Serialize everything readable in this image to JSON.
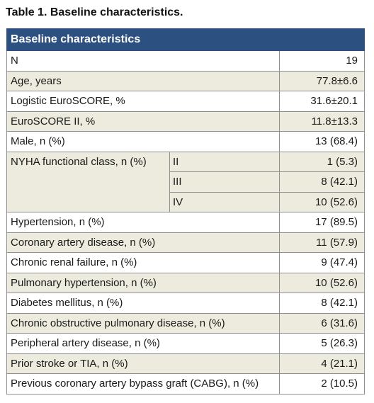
{
  "caption": "Table 1. Baseline characteristics.",
  "header": "Baseline characteristics",
  "rows_top": [
    {
      "label": "N",
      "value": "19"
    },
    {
      "label": "Age, years",
      "value": "77.8±6.6"
    },
    {
      "label": "Logistic EuroSCORE, %",
      "value": "31.6±20.1"
    },
    {
      "label": "EuroSCORE II, %",
      "value": "11.8±13.3"
    },
    {
      "label": "Male, n (%)",
      "value": "13 (68.4)"
    }
  ],
  "nyha": {
    "label": "NYHA functional class, n (%)",
    "classes": [
      {
        "class": "II",
        "value": "1 (5.3)"
      },
      {
        "class": "III",
        "value": "8 (42.1)"
      },
      {
        "class": "IV",
        "value": "10 (52.6)"
      }
    ]
  },
  "rows_bottom": [
    {
      "label": "Hypertension, n (%)",
      "value": "17 (89.5)"
    },
    {
      "label": "Coronary artery disease, n (%)",
      "value": "11 (57.9)"
    },
    {
      "label": "Chronic renal failure, n (%)",
      "value": "9 (47.4)"
    },
    {
      "label": "Pulmonary hypertension, n (%)",
      "value": "10 (52.6)"
    },
    {
      "label": "Diabetes mellitus, n (%)",
      "value": "8 (42.1)"
    },
    {
      "label": "Chronic obstructive pulmonary disease, n (%)",
      "value": "6 (31.6)"
    },
    {
      "label": "Peripheral artery disease, n (%)",
      "value": "5 (26.3)"
    },
    {
      "label": "Prior stroke or TIA, n (%)",
      "value": "4 (21.1)"
    },
    {
      "label": "Previous coronary artery bypass graft (CABG), n (%)",
      "value": "2 (10.5)"
    }
  ]
}
